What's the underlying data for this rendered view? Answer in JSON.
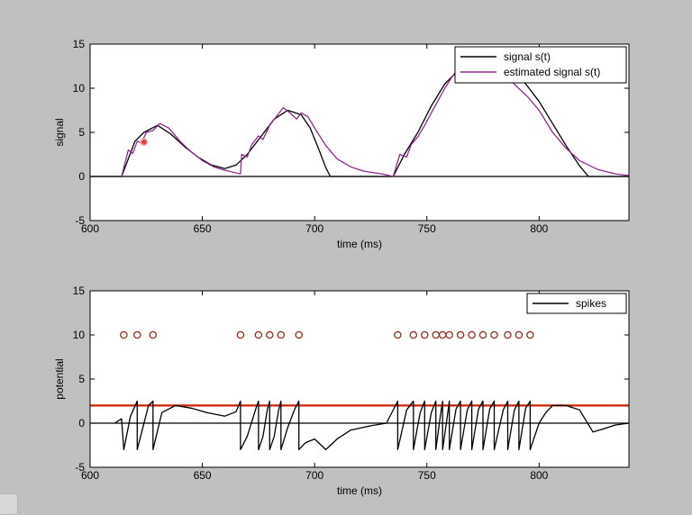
{
  "chart_data": [
    {
      "type": "line",
      "xlabel": "time (ms)",
      "ylabel": "signal",
      "xlim": [
        600,
        840
      ],
      "ylim": [
        -5,
        15
      ],
      "xticks": [
        "600",
        "650",
        "700",
        "750",
        "800"
      ],
      "yticks": [
        "-5",
        "0",
        "5",
        "10",
        "15"
      ],
      "grid": false,
      "legend_position": "top-right",
      "series": [
        {
          "name": "signal s(t)",
          "color": "#000000",
          "points": [
            [
              600,
              0
            ],
            [
              614,
              0
            ],
            [
              617,
              2
            ],
            [
              620,
              4
            ],
            [
              624,
              5
            ],
            [
              630,
              5.8
            ],
            [
              636,
              4.8
            ],
            [
              642,
              3.4
            ],
            [
              648,
              2.2
            ],
            [
              654,
              1.3
            ],
            [
              660,
              0.9
            ],
            [
              665,
              1.3
            ],
            [
              670,
              2.5
            ],
            [
              676,
              4.5
            ],
            [
              682,
              6.5
            ],
            [
              688,
              7.5
            ],
            [
              694,
              7
            ],
            [
              698,
              5.5
            ],
            [
              702,
              3
            ],
            [
              705,
              1
            ],
            [
              707,
              0
            ],
            [
              735,
              0
            ],
            [
              740,
              2.5
            ],
            [
              746,
              5
            ],
            [
              752,
              8
            ],
            [
              758,
              10.5
            ],
            [
              764,
              12
            ],
            [
              770,
              12.8
            ],
            [
              776,
              13.2
            ],
            [
              782,
              13
            ],
            [
              788,
              12
            ],
            [
              794,
              10.5
            ],
            [
              800,
              8.5
            ],
            [
              806,
              6
            ],
            [
              812,
              3.5
            ],
            [
              818,
              1.2
            ],
            [
              822,
              0
            ],
            [
              840,
              0
            ]
          ]
        },
        {
          "name": "estimated signal s(t)",
          "color": "#8e2a8a",
          "points": [
            [
              614,
              0
            ],
            [
              617,
              3
            ],
            [
              619,
              2.6
            ],
            [
              621,
              4
            ],
            [
              623,
              3.8
            ],
            [
              625,
              5
            ],
            [
              628,
              5.2
            ],
            [
              631,
              6
            ],
            [
              635,
              5.5
            ],
            [
              640,
              4
            ],
            [
              645,
              2.8
            ],
            [
              650,
              1.8
            ],
            [
              655,
              1.1
            ],
            [
              660,
              0.7
            ],
            [
              667,
              0.3
            ],
            [
              667.5,
              2.5
            ],
            [
              670,
              2.2
            ],
            [
              672,
              3.6
            ],
            [
              675,
              4.6
            ],
            [
              677,
              4.2
            ],
            [
              680,
              5.8
            ],
            [
              683,
              6.8
            ],
            [
              686,
              7.8
            ],
            [
              689,
              7.2
            ],
            [
              692,
              6.5
            ],
            [
              694,
              7.2
            ],
            [
              697,
              6.8
            ],
            [
              700,
              5.5
            ],
            [
              705,
              3.5
            ],
            [
              710,
              2
            ],
            [
              716,
              1.1
            ],
            [
              722,
              0.6
            ],
            [
              730,
              0.3
            ],
            [
              735,
              0
            ],
            [
              738,
              2.5
            ],
            [
              741,
              2.2
            ],
            [
              743,
              3.6
            ],
            [
              746,
              4.5
            ],
            [
              749,
              5.8
            ],
            [
              752,
              7.2
            ],
            [
              755,
              8.6
            ],
            [
              758,
              10
            ],
            [
              761,
              11.2
            ],
            [
              764,
              12.3
            ],
            [
              767,
              13.1
            ],
            [
              770,
              13.3
            ],
            [
              773,
              13.1
            ],
            [
              776,
              13.3
            ],
            [
              780,
              12.6
            ],
            [
              785,
              11.5
            ],
            [
              790,
              10.2
            ],
            [
              795,
              9
            ],
            [
              800,
              7.5
            ],
            [
              806,
              5
            ],
            [
              812,
              3.2
            ],
            [
              818,
              1.8
            ],
            [
              826,
              0.8
            ],
            [
              834,
              0.3
            ],
            [
              840,
              0.1
            ]
          ]
        }
      ],
      "annotations": [
        {
          "type": "marker",
          "x": 624,
          "y": 3.9,
          "color": "#e04040"
        }
      ]
    },
    {
      "type": "line",
      "xlabel": "time (ms)",
      "ylabel": "potential",
      "xlim": [
        600,
        840
      ],
      "ylim": [
        -5,
        15
      ],
      "xticks": [
        "600",
        "650",
        "700",
        "750",
        "800"
      ],
      "yticks": [
        "-5",
        "0",
        "5",
        "10",
        "15"
      ],
      "grid": false,
      "legend_position": "top-right",
      "threshold": {
        "y": 2,
        "color": "#cc2200"
      },
      "spike_markers": {
        "y": 10,
        "color": "#8b2d1c",
        "x": [
          615,
          621,
          628,
          667,
          675,
          680,
          685,
          693,
          737,
          744,
          749,
          754,
          757,
          760,
          765,
          770,
          775,
          780,
          786,
          791,
          796
        ]
      },
      "series": [
        {
          "name": "spikes",
          "color": "#000000",
          "points": [
            [
              611,
              0
            ],
            [
              614,
              0.5
            ],
            [
              615,
              -3
            ],
            [
              618,
              0.8
            ],
            [
              621,
              2.5
            ],
            [
              621,
              -3
            ],
            [
              623,
              -1
            ],
            [
              626,
              2
            ],
            [
              628,
              2.5
            ],
            [
              628,
              -3
            ],
            [
              632,
              1.2
            ],
            [
              638,
              2
            ],
            [
              645,
              1.7
            ],
            [
              652,
              1.2
            ],
            [
              660,
              0.8
            ],
            [
              665,
              1.3
            ],
            [
              667,
              2.5
            ],
            [
              667,
              -3
            ],
            [
              670,
              -1.5
            ],
            [
              674,
              1.8
            ],
            [
              675,
              2.5
            ],
            [
              675,
              -3
            ],
            [
              677,
              -1.5
            ],
            [
              679,
              1.6
            ],
            [
              680,
              2.5
            ],
            [
              680,
              -3
            ],
            [
              682,
              -1.5
            ],
            [
              684,
              1.5
            ],
            [
              685,
              2.5
            ],
            [
              685,
              -3
            ],
            [
              688,
              -0.5
            ],
            [
              691,
              1.5
            ],
            [
              693,
              2.5
            ],
            [
              693,
              -3
            ],
            [
              696,
              -2.2
            ],
            [
              700,
              -1.8
            ],
            [
              705,
              -3
            ],
            [
              710,
              -1.8
            ],
            [
              716,
              -0.8
            ],
            [
              725,
              -0.3
            ],
            [
              732,
              0
            ],
            [
              737,
              2.5
            ],
            [
              737,
              -3
            ],
            [
              741,
              1.5
            ],
            [
              744,
              2.5
            ],
            [
              744,
              -3
            ],
            [
              747,
              1.2
            ],
            [
              749,
              2.5
            ],
            [
              749,
              -3
            ],
            [
              752,
              1.2
            ],
            [
              754,
              2.5
            ],
            [
              754,
              -3
            ],
            [
              756,
              0.8
            ],
            [
              757,
              2.5
            ],
            [
              757,
              -3
            ],
            [
              759,
              0.6
            ],
            [
              760,
              2.5
            ],
            [
              760,
              -3
            ],
            [
              763,
              1.6
            ],
            [
              765,
              2.5
            ],
            [
              765,
              -3
            ],
            [
              768,
              1.5
            ],
            [
              770,
              2.5
            ],
            [
              770,
              -3
            ],
            [
              773,
              1.6
            ],
            [
              775,
              2.5
            ],
            [
              775,
              -3
            ],
            [
              778,
              1.6
            ],
            [
              780,
              2.5
            ],
            [
              780,
              -3
            ],
            [
              784,
              1.5
            ],
            [
              786,
              2.5
            ],
            [
              786,
              -3
            ],
            [
              789,
              1.5
            ],
            [
              791,
              2.5
            ],
            [
              791,
              -3
            ],
            [
              794,
              1.7
            ],
            [
              796,
              2.5
            ],
            [
              796,
              -3
            ],
            [
              800,
              0
            ],
            [
              803,
              1.2
            ],
            [
              806,
              2
            ],
            [
              812,
              2
            ],
            [
              818,
              1.5
            ],
            [
              824,
              -1
            ],
            [
              828,
              -0.7
            ],
            [
              834,
              -0.2
            ],
            [
              840,
              0
            ]
          ]
        }
      ]
    }
  ]
}
